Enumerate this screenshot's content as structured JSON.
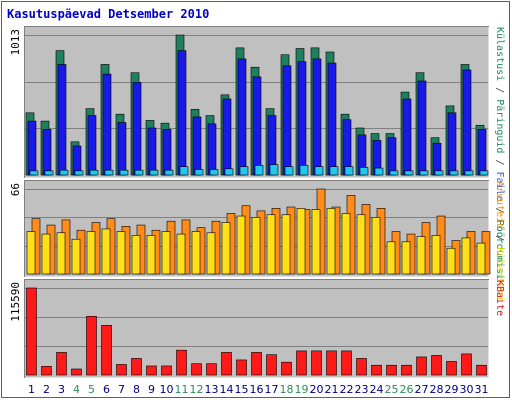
{
  "chart_data": [
    {
      "type": "bar",
      "title": "Kasutuspäevad Detsember 2010",
      "max_label": "1013",
      "ylim": [
        0,
        1013
      ],
      "right_labels": [
        {
          "text": "Külastusi",
          "color": "#1a8a5c"
        },
        {
          "text": " / ",
          "color": "#404040"
        },
        {
          "text": "Päringuid",
          "color": "#1a8a5c"
        },
        {
          "text": " / ",
          "color": "#404040"
        },
        {
          "text": "Faile",
          "color": "#2e5cd6"
        },
        {
          "text": " / ",
          "color": "#404040"
        },
        {
          "text": "Pöördumisi",
          "color": "#1a8a5c"
        }
      ],
      "series": [
        {
          "color": "#1f8060",
          "values": [
            450,
            390,
            900,
            240,
            480,
            800,
            440,
            740,
            395,
            375,
            1013,
            475,
            430,
            580,
            920,
            780,
            480,
            870,
            915,
            920,
            890,
            440,
            340,
            300,
            300,
            600,
            740,
            270,
            500,
            800,
            360
          ]
        },
        {
          "color": "#1a1ae8",
          "values": [
            390,
            330,
            800,
            210,
            430,
            730,
            380,
            670,
            340,
            330,
            900,
            420,
            370,
            550,
            840,
            710,
            430,
            790,
            820,
            840,
            810,
            400,
            290,
            250,
            270,
            550,
            680,
            230,
            450,
            760,
            330
          ]
        },
        {
          "color": "#20c8f0",
          "values": [
            30,
            30,
            35,
            30,
            35,
            35,
            35,
            35,
            35,
            35,
            60,
            40,
            40,
            45,
            60,
            70,
            75,
            60,
            70,
            60,
            60,
            60,
            55,
            50,
            30,
            30,
            30,
            30,
            30,
            30,
            30
          ]
        }
      ]
    },
    {
      "type": "bar",
      "max_label": "66",
      "ylim": [
        0,
        66
      ],
      "right_labels": [
        {
          "text": "Arvuteid",
          "color": "#ff8c00"
        },
        {
          "text": " / ",
          "color": "#404040"
        },
        {
          "text": "Külastusi",
          "color": "#e8d800"
        }
      ],
      "series": [
        {
          "color": "#ff8c1a",
          "values": [
            43,
            38,
            42,
            34,
            40,
            43,
            37,
            38,
            34,
            41,
            42,
            36,
            41,
            47,
            53,
            49,
            51,
            52,
            50,
            66,
            52,
            61,
            54,
            51,
            33,
            31,
            40,
            45,
            26,
            33,
            33
          ]
        },
        {
          "color": "#ffe018",
          "values": [
            33,
            31,
            32,
            27,
            33,
            35,
            33,
            30,
            30,
            33,
            31,
            33,
            32,
            40,
            45,
            44,
            46,
            46,
            51,
            50,
            51,
            47,
            46,
            44,
            25,
            25,
            29,
            30,
            20,
            28,
            24
          ]
        }
      ]
    },
    {
      "type": "bar",
      "max_label": "115590",
      "ylim": [
        0,
        115590
      ],
      "right_labels": [
        {
          "text": "KBaite",
          "color": "#e01010"
        }
      ],
      "series": [
        {
          "color": "#ff1a1a",
          "values": [
            115590,
            11500,
            30000,
            8000,
            78000,
            66000,
            14000,
            22000,
            12000,
            12000,
            33000,
            15000,
            15000,
            30000,
            20000,
            30000,
            27000,
            17000,
            32000,
            32000,
            32000,
            32000,
            22000,
            13000,
            13000,
            13000,
            24000,
            26000,
            18000,
            28000,
            13000
          ]
        }
      ]
    }
  ],
  "x_axis": {
    "labels": [
      "1",
      "2",
      "3",
      "4",
      "5",
      "6",
      "7",
      "8",
      "9",
      "10",
      "11",
      "12",
      "13",
      "14",
      "15",
      "16",
      "17",
      "18",
      "19",
      "20",
      "21",
      "22",
      "23",
      "24",
      "25",
      "26",
      "27",
      "28",
      "29",
      "30",
      "31"
    ],
    "weekend_days": [
      "4",
      "5",
      "11",
      "12",
      "18",
      "19",
      "25",
      "26"
    ],
    "weekday_color": "#000080",
    "weekend_color": "#2e8b57"
  },
  "colors": {
    "background": "#c0c0c0",
    "outer_border": "#606060",
    "title": "#0000c8",
    "gridline": "#808080"
  }
}
